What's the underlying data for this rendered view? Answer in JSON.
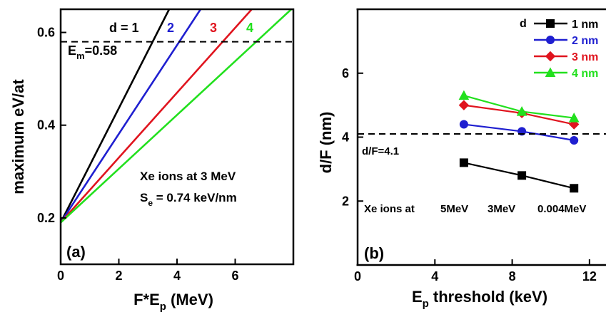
{
  "chart_data": [
    {
      "type": "line",
      "panel_label": "(a)",
      "xlabel_main": "F*E",
      "xlabel_sub": "p",
      "xlabel_unit": " (MeV)",
      "ylabel": "maximum eV/at",
      "xlim": [
        0,
        8
      ],
      "ylim": [
        0.1,
        0.65
      ],
      "x_ticks": [
        0,
        2,
        4,
        6
      ],
      "y_ticks": [
        0.2,
        0.4,
        0.6
      ],
      "grid": false,
      "series": [
        {
          "name": "d = 1",
          "color": "#000000",
          "x": [
            0,
            3.73
          ],
          "y": [
            0.19,
            0.65
          ]
        },
        {
          "name": "2",
          "color": "#1f1fd0",
          "x": [
            0,
            4.81
          ],
          "y": [
            0.19,
            0.65
          ]
        },
        {
          "name": "3",
          "color": "#e0141e",
          "x": [
            0,
            6.57
          ],
          "y": [
            0.19,
            0.65
          ]
        },
        {
          "name": "4",
          "color": "#22e01e",
          "x": [
            0,
            7.93
          ],
          "y": [
            0.19,
            0.65
          ]
        }
      ],
      "reference_line": {
        "y": 0.58,
        "label_main": "E",
        "label_sub": "m",
        "label_value": "=0.58"
      },
      "annotation_line1": "Xe ions at 3 MeV",
      "annotation_s": "S",
      "annotation_sub": "e",
      "annotation_rest": " = 0.74 keV/nm"
    },
    {
      "type": "line",
      "panel_label": "(b)",
      "xlabel_main": "E",
      "xlabel_sub": "p",
      "xlabel_unit": " threshold (keV)",
      "ylabel": "d/F (nm)",
      "xlim": [
        0,
        14
      ],
      "ylim": [
        0,
        8
      ],
      "x_ticks": [
        0,
        4,
        8,
        12
      ],
      "y_ticks": [
        2,
        4,
        6
      ],
      "grid": false,
      "legend_title": "d",
      "legend_position": "top-right",
      "series": [
        {
          "name": "1 nm",
          "color": "#000000",
          "marker": "square",
          "x": [
            5.5,
            8.5,
            11.2
          ],
          "y": [
            3.2,
            2.8,
            2.4
          ]
        },
        {
          "name": "2 nm",
          "color": "#1f1fd0",
          "marker": "circle",
          "x": [
            5.5,
            8.5,
            11.2
          ],
          "y": [
            4.4,
            4.18,
            3.9
          ]
        },
        {
          "name": "3 nm",
          "color": "#e0141e",
          "marker": "diamond",
          "x": [
            5.5,
            8.5,
            11.2
          ],
          "y": [
            5.0,
            4.75,
            4.4
          ]
        },
        {
          "name": "4 nm",
          "color": "#22e01e",
          "marker": "triangle",
          "x": [
            5.5,
            8.5,
            11.2
          ],
          "y": [
            5.3,
            4.8,
            4.6
          ]
        }
      ],
      "reference_line": {
        "y": 4.1,
        "label": "d/F=4.1"
      },
      "annotation_ions": "Xe ions at",
      "annotation_energies": [
        "5MeV",
        "3MeV",
        "0.004MeV"
      ]
    }
  ]
}
